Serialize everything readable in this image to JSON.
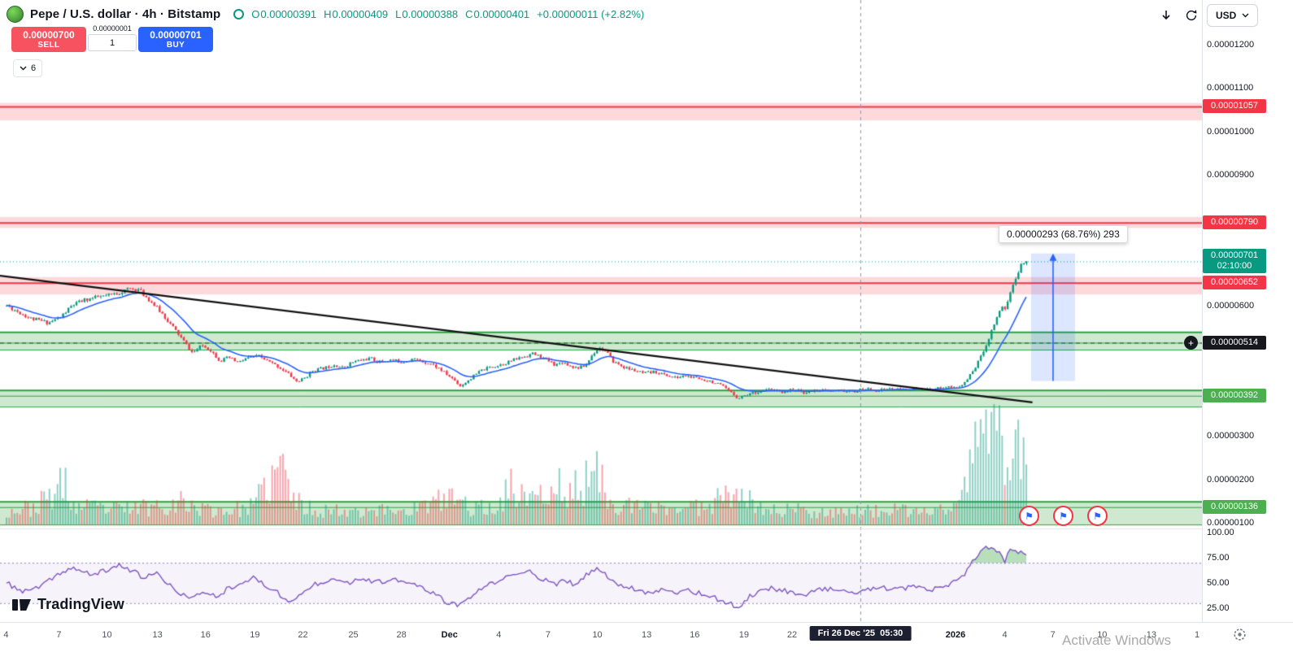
{
  "icons": {
    "plus": "+",
    "flag": "⚑"
  },
  "header": {
    "symbol_title": "Pepe / U.S. dollar · 4h · Bitstamp",
    "legend": {
      "o_label": "O",
      "o_value": "0.00000391",
      "h_label": "H",
      "h_value": "0.00000409",
      "l_label": "L",
      "l_value": "0.00000388",
      "c_label": "C",
      "c_value": "0.00000401",
      "change": "+0.00000011 (+2.82%)"
    },
    "currency_button": "USD"
  },
  "order_panel": {
    "sell_price": "0.00000700",
    "sell_label": "SELL",
    "spread_label": "0.00000001",
    "qty": "1",
    "buy_price": "0.00000701",
    "buy_label": "BUY",
    "tree_count": "6"
  },
  "measure_tooltip": "0.00000293 (68.76%) 293",
  "price_axis": {
    "labels": [
      {
        "text": "0.00001200",
        "value": 1200,
        "pane": "main"
      },
      {
        "text": "0.00001100",
        "value": 1100,
        "pane": "main"
      },
      {
        "text": "0.00001000",
        "value": 1000,
        "pane": "main"
      },
      {
        "text": "0.00000900",
        "value": 900,
        "pane": "main"
      },
      {
        "text": "0.00000600",
        "value": 600,
        "pane": "main"
      },
      {
        "text": "0.00000300",
        "value": 300,
        "pane": "main"
      },
      {
        "text": "0.00000200",
        "value": 200,
        "pane": "main"
      },
      {
        "text": "0.00000100",
        "value": 100,
        "pane": "main"
      },
      {
        "text": "100.00",
        "value": 100,
        "pane": "rsi"
      },
      {
        "text": "75.00",
        "value": 75,
        "pane": "rsi"
      },
      {
        "text": "50.00",
        "value": 50,
        "pane": "rsi"
      },
      {
        "text": "25.00",
        "value": 25,
        "pane": "rsi"
      }
    ],
    "badges": [
      {
        "text": "0.00001057",
        "price": 1057,
        "bg": "#f23645"
      },
      {
        "text": "0.00000790",
        "price": 790,
        "bg": "#f23645"
      },
      {
        "text": "0.00000701",
        "sub": "02:10:00",
        "price": 701,
        "bg": "#089981"
      },
      {
        "text": "0.00000652",
        "price": 652,
        "bg": "#f23645"
      },
      {
        "text": "0.00000514",
        "price": 514,
        "bg": "#16181e"
      },
      {
        "text": "0.00000392",
        "price": 392,
        "bg": "#4caf50"
      },
      {
        "text": "0.00000136",
        "price": 136,
        "bg": "#4caf50"
      }
    ]
  },
  "time_axis": {
    "labels": [
      {
        "text": "4",
        "t": 0.005
      },
      {
        "text": "7",
        "t": 0.049
      },
      {
        "text": "10",
        "t": 0.089
      },
      {
        "text": "13",
        "t": 0.131
      },
      {
        "text": "16",
        "t": 0.171
      },
      {
        "text": "19",
        "t": 0.212
      },
      {
        "text": "22",
        "t": 0.252
      },
      {
        "text": "25",
        "t": 0.294
      },
      {
        "text": "28",
        "t": 0.334
      },
      {
        "text": "Dec",
        "t": 0.374,
        "strong": true
      },
      {
        "text": "4",
        "t": 0.415
      },
      {
        "text": "7",
        "t": 0.456
      },
      {
        "text": "10",
        "t": 0.497
      },
      {
        "text": "13",
        "t": 0.538
      },
      {
        "text": "16",
        "t": 0.578
      },
      {
        "text": "19",
        "t": 0.619
      },
      {
        "text": "22",
        "t": 0.659
      },
      {
        "text": "2026",
        "t": 0.795,
        "strong": true
      },
      {
        "text": "4",
        "t": 0.836
      },
      {
        "text": "7",
        "t": 0.876
      },
      {
        "text": "10",
        "t": 0.917
      },
      {
        "text": "13",
        "t": 0.958
      },
      {
        "text": "1",
        "t": 0.996
      }
    ],
    "crosshair_label": "Fri 26 Dec '25  05:30"
  },
  "footer": {
    "logo_text": "TradingView",
    "watermark": "Activate Windows"
  },
  "chart_data": {
    "type": "candlestick",
    "title": "Pepe / U.S. dollar · 4h · Bitstamp",
    "price_unit": "1e-8 USD",
    "ohlc_current": {
      "open": 391,
      "high": 409,
      "low": 388,
      "close": 401,
      "change": 11,
      "change_pct": 2.82
    },
    "current_price": 701,
    "countdown": "02:10:00",
    "ylim_main": [
      100,
      1300
    ],
    "zones": [
      {
        "type": "resistance",
        "hi": 1065,
        "lo": 1025,
        "level": 1057
      },
      {
        "type": "resistance",
        "hi": 803,
        "lo": 778,
        "level": 790
      },
      {
        "type": "resistance",
        "hi": 665,
        "lo": 625,
        "level": 652
      },
      {
        "type": "support",
        "hi": 539,
        "lo": 498,
        "level": 514,
        "dashed_level": true
      },
      {
        "type": "support",
        "hi": 405,
        "lo": 367,
        "level": 392
      },
      {
        "type": "support",
        "hi": 149,
        "lo": 96,
        "level": 136
      }
    ],
    "trendline": {
      "from": {
        "t": 0.0,
        "price": 668
      },
      "to": {
        "t": 0.859,
        "price": 377
      }
    },
    "crosshair_t": 0.7158,
    "last_candle_t": 0.854,
    "measure": {
      "t0": 0.8579,
      "t1": 0.8944,
      "price_from": 426,
      "price_to": 719,
      "label": "0.00000293 (68.76%) 293"
    },
    "price_path": [
      [
        0.005,
        600
      ],
      [
        0.015,
        585
      ],
      [
        0.025,
        570
      ],
      [
        0.04,
        560
      ],
      [
        0.05,
        572
      ],
      [
        0.06,
        600
      ],
      [
        0.07,
        612
      ],
      [
        0.08,
        618
      ],
      [
        0.09,
        622
      ],
      [
        0.1,
        630
      ],
      [
        0.108,
        638
      ],
      [
        0.115,
        636
      ],
      [
        0.125,
        610
      ],
      [
        0.135,
        580
      ],
      [
        0.145,
        545
      ],
      [
        0.152,
        520
      ],
      [
        0.16,
        490
      ],
      [
        0.168,
        508
      ],
      [
        0.175,
        497
      ],
      [
        0.183,
        472
      ],
      [
        0.19,
        480
      ],
      [
        0.198,
        468
      ],
      [
        0.205,
        478
      ],
      [
        0.215,
        483
      ],
      [
        0.225,
        468
      ],
      [
        0.232,
        458
      ],
      [
        0.24,
        442
      ],
      [
        0.247,
        424
      ],
      [
        0.253,
        432
      ],
      [
        0.26,
        450
      ],
      [
        0.27,
        456
      ],
      [
        0.278,
        464
      ],
      [
        0.285,
        456
      ],
      [
        0.292,
        468
      ],
      [
        0.3,
        474
      ],
      [
        0.308,
        478
      ],
      [
        0.315,
        470
      ],
      [
        0.325,
        474
      ],
      [
        0.335,
        470
      ],
      [
        0.342,
        477
      ],
      [
        0.35,
        472
      ],
      [
        0.358,
        466
      ],
      [
        0.365,
        455
      ],
      [
        0.372,
        440
      ],
      [
        0.378,
        428
      ],
      [
        0.383,
        414
      ],
      [
        0.39,
        429
      ],
      [
        0.4,
        450
      ],
      [
        0.408,
        458
      ],
      [
        0.415,
        463
      ],
      [
        0.423,
        470
      ],
      [
        0.43,
        477
      ],
      [
        0.437,
        483
      ],
      [
        0.443,
        489
      ],
      [
        0.45,
        481
      ],
      [
        0.457,
        471
      ],
      [
        0.462,
        463
      ],
      [
        0.468,
        470
      ],
      [
        0.474,
        461
      ],
      [
        0.48,
        456
      ],
      [
        0.487,
        461
      ],
      [
        0.493,
        488
      ],
      [
        0.498,
        503
      ],
      [
        0.504,
        494
      ],
      [
        0.51,
        471
      ],
      [
        0.52,
        456
      ],
      [
        0.528,
        450
      ],
      [
        0.535,
        443
      ],
      [
        0.545,
        447
      ],
      [
        0.553,
        440
      ],
      [
        0.562,
        433
      ],
      [
        0.57,
        438
      ],
      [
        0.58,
        431
      ],
      [
        0.59,
        427
      ],
      [
        0.6,
        415
      ],
      [
        0.607,
        401
      ],
      [
        0.614,
        387
      ],
      [
        0.62,
        394
      ],
      [
        0.63,
        401
      ],
      [
        0.64,
        406
      ],
      [
        0.65,
        401
      ],
      [
        0.66,
        406
      ],
      [
        0.67,
        399
      ],
      [
        0.68,
        406
      ],
      [
        0.69,
        402
      ],
      [
        0.7,
        404
      ],
      [
        0.71,
        401
      ],
      [
        0.72,
        408
      ],
      [
        0.73,
        404
      ],
      [
        0.74,
        409
      ],
      [
        0.75,
        405
      ],
      [
        0.76,
        409
      ],
      [
        0.77,
        405
      ],
      [
        0.78,
        409
      ],
      [
        0.788,
        413
      ],
      [
        0.795,
        409
      ],
      [
        0.8,
        416
      ],
      [
        0.804,
        428
      ],
      [
        0.808,
        443
      ],
      [
        0.812,
        462
      ],
      [
        0.816,
        482
      ],
      [
        0.82,
        508
      ],
      [
        0.824,
        535
      ],
      [
        0.827,
        558
      ],
      [
        0.83,
        577
      ],
      [
        0.833,
        600
      ],
      [
        0.836,
        592
      ],
      [
        0.839,
        617
      ],
      [
        0.842,
        641
      ],
      [
        0.845,
        664
      ],
      [
        0.848,
        684
      ],
      [
        0.851,
        698
      ],
      [
        0.854,
        703
      ]
    ],
    "volume_path": [
      [
        0.005,
        0.1
      ],
      [
        0.03,
        0.14
      ],
      [
        0.055,
        0.33
      ],
      [
        0.06,
        0.14
      ],
      [
        0.1,
        0.12
      ],
      [
        0.13,
        0.15
      ],
      [
        0.15,
        0.18
      ],
      [
        0.17,
        0.12
      ],
      [
        0.19,
        0.11
      ],
      [
        0.21,
        0.14
      ],
      [
        0.222,
        0.3
      ],
      [
        0.235,
        0.47
      ],
      [
        0.245,
        0.18
      ],
      [
        0.26,
        0.12
      ],
      [
        0.28,
        0.11
      ],
      [
        0.3,
        0.12
      ],
      [
        0.32,
        0.11
      ],
      [
        0.34,
        0.12
      ],
      [
        0.36,
        0.16
      ],
      [
        0.375,
        0.22
      ],
      [
        0.39,
        0.14
      ],
      [
        0.41,
        0.12
      ],
      [
        0.425,
        0.3
      ],
      [
        0.435,
        0.22
      ],
      [
        0.445,
        0.3
      ],
      [
        0.455,
        0.16
      ],
      [
        0.465,
        0.33
      ],
      [
        0.47,
        0.2
      ],
      [
        0.48,
        0.3
      ],
      [
        0.49,
        0.35
      ],
      [
        0.498,
        0.4
      ],
      [
        0.505,
        0.25
      ],
      [
        0.515,
        0.16
      ],
      [
        0.53,
        0.13
      ],
      [
        0.55,
        0.14
      ],
      [
        0.57,
        0.12
      ],
      [
        0.59,
        0.16
      ],
      [
        0.605,
        0.28
      ],
      [
        0.615,
        0.33
      ],
      [
        0.625,
        0.16
      ],
      [
        0.64,
        0.11
      ],
      [
        0.66,
        0.12
      ],
      [
        0.68,
        0.1
      ],
      [
        0.7,
        0.11
      ],
      [
        0.72,
        0.1
      ],
      [
        0.74,
        0.11
      ],
      [
        0.76,
        0.1
      ],
      [
        0.78,
        0.11
      ],
      [
        0.79,
        0.13
      ],
      [
        0.8,
        0.2
      ],
      [
        0.806,
        0.45
      ],
      [
        0.81,
        0.6
      ],
      [
        0.814,
        0.55
      ],
      [
        0.818,
        0.98
      ],
      [
        0.822,
        0.7
      ],
      [
        0.826,
        0.85
      ],
      [
        0.83,
        0.6
      ],
      [
        0.834,
        0.75
      ],
      [
        0.838,
        0.55
      ],
      [
        0.842,
        0.8
      ],
      [
        0.846,
        0.9
      ],
      [
        0.85,
        0.55
      ],
      [
        0.854,
        0.35
      ]
    ],
    "rsi": {
      "bands": [
        70,
        30
      ],
      "ylim": [
        0,
        100
      ],
      "path": [
        [
          0.005,
          50
        ],
        [
          0.02,
          41
        ],
        [
          0.035,
          47
        ],
        [
          0.05,
          60
        ],
        [
          0.06,
          65
        ],
        [
          0.075,
          58
        ],
        [
          0.09,
          63
        ],
        [
          0.1,
          68
        ],
        [
          0.11,
          62
        ],
        [
          0.12,
          55
        ],
        [
          0.13,
          60
        ],
        [
          0.14,
          48
        ],
        [
          0.15,
          40
        ],
        [
          0.16,
          34
        ],
        [
          0.17,
          42
        ],
        [
          0.18,
          36
        ],
        [
          0.19,
          45
        ],
        [
          0.2,
          50
        ],
        [
          0.21,
          55
        ],
        [
          0.22,
          48
        ],
        [
          0.23,
          42
        ],
        [
          0.24,
          30
        ],
        [
          0.25,
          38
        ],
        [
          0.26,
          48
        ],
        [
          0.27,
          52
        ],
        [
          0.28,
          55
        ],
        [
          0.29,
          50
        ],
        [
          0.3,
          55
        ],
        [
          0.31,
          52
        ],
        [
          0.32,
          50
        ],
        [
          0.33,
          53
        ],
        [
          0.34,
          50
        ],
        [
          0.35,
          46
        ],
        [
          0.36,
          40
        ],
        [
          0.37,
          32
        ],
        [
          0.383,
          27
        ],
        [
          0.395,
          40
        ],
        [
          0.41,
          50
        ],
        [
          0.42,
          55
        ],
        [
          0.43,
          58
        ],
        [
          0.44,
          62
        ],
        [
          0.45,
          55
        ],
        [
          0.46,
          48
        ],
        [
          0.47,
          52
        ],
        [
          0.48,
          48
        ],
        [
          0.49,
          60
        ],
        [
          0.498,
          64
        ],
        [
          0.51,
          52
        ],
        [
          0.52,
          46
        ],
        [
          0.53,
          44
        ],
        [
          0.54,
          40
        ],
        [
          0.55,
          44
        ],
        [
          0.56,
          40
        ],
        [
          0.57,
          44
        ],
        [
          0.58,
          40
        ],
        [
          0.59,
          38
        ],
        [
          0.6,
          32
        ],
        [
          0.615,
          26
        ],
        [
          0.625,
          38
        ],
        [
          0.64,
          45
        ],
        [
          0.655,
          42
        ],
        [
          0.67,
          38
        ],
        [
          0.685,
          45
        ],
        [
          0.7,
          42
        ],
        [
          0.715,
          40
        ],
        [
          0.73,
          46
        ],
        [
          0.745,
          43
        ],
        [
          0.76,
          46
        ],
        [
          0.775,
          43
        ],
        [
          0.79,
          48
        ],
        [
          0.8,
          55
        ],
        [
          0.806,
          65
        ],
        [
          0.812,
          75
        ],
        [
          0.818,
          83
        ],
        [
          0.824,
          86
        ],
        [
          0.83,
          82
        ],
        [
          0.836,
          72
        ],
        [
          0.84,
          84
        ],
        [
          0.845,
          80
        ],
        [
          0.85,
          83
        ],
        [
          0.854,
          77
        ]
      ]
    },
    "colors": {
      "up": "#089981",
      "down": "#f23645",
      "ma": "#2962ff",
      "rsi": "#7e57c2",
      "measure": "#2962ff",
      "trendline": "#111111",
      "zone_res_fill": "rgba(247,82,95,0.22)",
      "zone_sup_fill": "rgba(102,187,106,0.32)",
      "zone_res_line": "#f23645",
      "zone_sup_line": "#2f9e44"
    }
  }
}
